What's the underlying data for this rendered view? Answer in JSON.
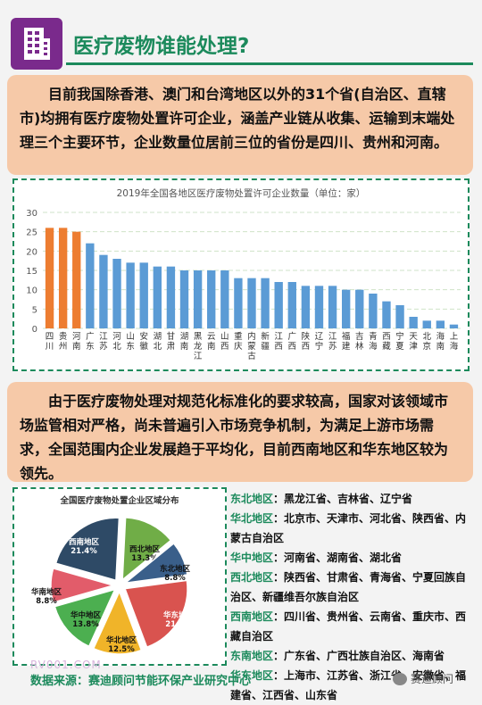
{
  "header": {
    "title": "医疗废物谁能处理?",
    "icon": "building-icon"
  },
  "callout1": "目前我国除香港、澳门和台湾地区以外的31个省(自治区、直辖市)均拥有医疗废物处置许可企业，涵盖产业链从收集、运输到末端处理三个主要环节，企业数量位居前三位的省份是四川、贵州和河南。",
  "callout2": "由于医疗废物处理对规范化标准化的要求较高，国家对该领域市场监管相对严格，尚未普遍引入市场竞争机制，为满足上游市场需求，全国范围内企业发展趋于平均化，目前西南地区和华东地区较为领先。",
  "colors": {
    "green": "#1c8a5c",
    "orange_bar": "#ed7d31",
    "blue_bar": "#5b9bd5",
    "callout_bg": "#f6c9a8"
  },
  "chart_data": [
    {
      "type": "bar",
      "title": "2019年全国各地区医疗废物处置许可企业数量（单位：家）",
      "categories": [
        "四川",
        "贵州",
        "河南",
        "广东",
        "江苏",
        "河北",
        "山东",
        "安徽",
        "湖北",
        "甘肃",
        "湖南",
        "黑龙江",
        "云南",
        "山西",
        "重庆",
        "内蒙古",
        "新疆",
        "江西",
        "广西",
        "陕西",
        "辽宁",
        "江苏",
        "福建",
        "吉林",
        "青海",
        "西藏",
        "宁夏",
        "天津",
        "北京",
        "海南",
        "上海"
      ],
      "values": [
        26,
        26,
        25,
        22,
        19,
        18,
        17,
        17,
        16,
        16,
        15,
        15,
        15,
        15,
        13,
        13,
        13,
        12,
        12,
        11,
        11,
        11,
        10,
        10,
        9,
        7,
        6,
        3,
        2,
        2,
        1
      ],
      "highlight_count": 3,
      "ylim": [
        0,
        30
      ],
      "yticks": [
        0,
        5,
        10,
        15,
        20,
        25,
        30
      ],
      "grid": true,
      "colors": [
        "#ed7d31",
        "#5b9bd5"
      ]
    },
    {
      "type": "pie",
      "title": "全国医疗废物处置企业区域分布",
      "slices": [
        {
          "label": "西北地区",
          "pct_text": "13.3%",
          "value": 13.3,
          "color": "#70ad47"
        },
        {
          "label": "东北地区",
          "pct_text": "8.8%",
          "value": 8.8,
          "color": "#3a5f8a"
        },
        {
          "label": "华东地区",
          "pct_text": "21.4%",
          "value": 21.4,
          "color": "#d9534f"
        },
        {
          "label": "华北地区",
          "pct_text": "12.5%",
          "value": 12.5,
          "color": "#f0b429"
        },
        {
          "label": "华中地区",
          "pct_text": "13.8%",
          "value": 13.8,
          "color": "#4caf50"
        },
        {
          "label": "华南地区",
          "pct_text": "8.8%",
          "value": 8.8,
          "color": "#e25c6a"
        },
        {
          "label": "西南地区",
          "pct_text": "21.4%",
          "value": 21.4,
          "color": "#2e4a66"
        }
      ]
    }
  ],
  "regions": [
    {
      "name": "东北地区",
      "provinces": "：黑龙江省、吉林省、辽宁省"
    },
    {
      "name": "华北地区",
      "provinces": "：北京市、天津市、河北省、陕西省、内蒙古自治区"
    },
    {
      "name": "华中地区",
      "provinces": "：河南省、湖南省、湖北省"
    },
    {
      "name": "西北地区",
      "provinces": "：陕西省、甘肃省、青海省、宁夏回族自治区、新疆维吾尔族自治区"
    },
    {
      "name": "西南地区",
      "provinces": "：四川省、贵州省、云南省、重庆市、西藏自治区"
    },
    {
      "name": "东南地区",
      "provinces": "：广东省、广西壮族自治区、海南省"
    },
    {
      "name": "华东地区",
      "provinces": "：上海市、江苏省、浙江省、安徽省、福建省、江西省、山东省"
    }
  ],
  "footer": {
    "source": "数据来源：赛迪顾问节能环保产业研究中心",
    "watermark": "RV001.COM",
    "wechat": "赛迪顾问"
  }
}
